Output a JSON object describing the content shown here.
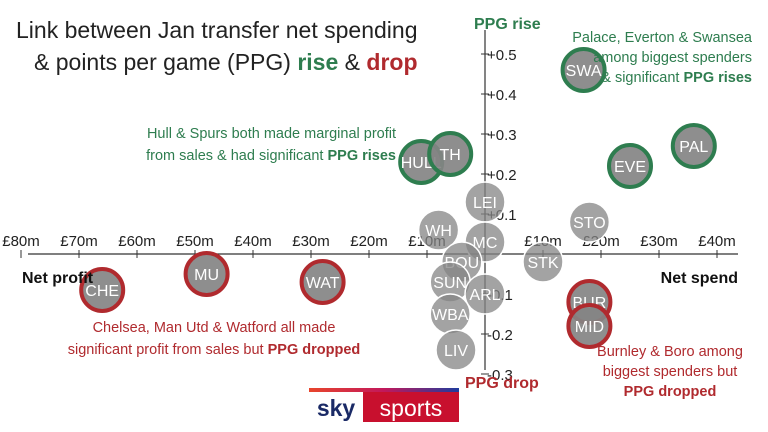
{
  "chart_data": {
    "type": "scatter",
    "title_lines": [
      "Link between Jan transfer net spending",
      "& points per game (PPG) ",
      "rise",
      " & ",
      "drop"
    ],
    "x_ticks": [
      "£80m",
      "£70m",
      "£60m",
      "£50m",
      "£40m",
      "£30m",
      "£20m",
      "£10m",
      "£10m",
      "£20m",
      "£30m",
      "£40m"
    ],
    "x_tick_values": [
      -80,
      -70,
      -60,
      -50,
      -40,
      -30,
      -20,
      -10,
      10,
      20,
      30,
      40
    ],
    "y_ticks": [
      "+0.5",
      "+0.4",
      "+0.3",
      "+0.2",
      "+0.1",
      "-0.1",
      "-0.2",
      "-0.3"
    ],
    "y_tick_values": [
      0.5,
      0.4,
      0.3,
      0.2,
      0.1,
      -0.1,
      -0.2,
      -0.3
    ],
    "xlim": [
      -80,
      40
    ],
    "ylim": [
      -0.3,
      0.5
    ],
    "x_label_left": "Net profit",
    "x_label_right": "Net spend",
    "y_label_top": "PPG rise",
    "y_label_bottom": "PPG drop",
    "colors": {
      "rise": "#2e7d4f",
      "drop": "#b02a2e",
      "neutral": "#8c8c8c",
      "axis": "#333333"
    },
    "points": [
      {
        "label": "SWA",
        "x": 17,
        "y": 0.46,
        "group": "rise"
      },
      {
        "label": "PAL",
        "x": 36,
        "y": 0.27,
        "group": "rise"
      },
      {
        "label": "EVE",
        "x": 25,
        "y": 0.22,
        "group": "rise"
      },
      {
        "label": "HULL",
        "x": -11,
        "y": 0.23,
        "group": "rise"
      },
      {
        "label": "TH",
        "x": -6,
        "y": 0.25,
        "group": "rise"
      },
      {
        "label": "LEI",
        "x": 0,
        "y": 0.13,
        "group": "neutral"
      },
      {
        "label": "STO",
        "x": 18,
        "y": 0.08,
        "group": "neutral"
      },
      {
        "label": "WH",
        "x": -8,
        "y": 0.06,
        "group": "neutral"
      },
      {
        "label": "MC",
        "x": 0,
        "y": 0.03,
        "group": "neutral"
      },
      {
        "label": "BOU",
        "x": -4,
        "y": -0.02,
        "group": "neutral"
      },
      {
        "label": "STK",
        "x": 10,
        "y": -0.02,
        "group": "neutral"
      },
      {
        "label": "SUN",
        "x": -6,
        "y": -0.07,
        "group": "neutral"
      },
      {
        "label": "ARL",
        "x": 0,
        "y": -0.1,
        "group": "neutral"
      },
      {
        "label": "WBA",
        "x": -6,
        "y": -0.15,
        "group": "neutral"
      },
      {
        "label": "LIV",
        "x": -5,
        "y": -0.24,
        "group": "neutral"
      },
      {
        "label": "CHE",
        "x": -66,
        "y": -0.09,
        "group": "drop"
      },
      {
        "label": "MU",
        "x": -48,
        "y": -0.05,
        "group": "drop"
      },
      {
        "label": "WAT",
        "x": -28,
        "y": -0.07,
        "group": "drop"
      },
      {
        "label": "BUR",
        "x": 18,
        "y": -0.12,
        "group": "drop"
      },
      {
        "label": "MID",
        "x": 18,
        "y": -0.18,
        "group": "drop"
      }
    ],
    "annotations": {
      "palace": {
        "lines": [
          "Palace, Everton & Swansea",
          "among biggest spenders"
        ],
        "last_pre": "& significant ",
        "last_bold": "PPG rises"
      },
      "hull": {
        "lines": [
          "Hull & Spurs both made marginal profit"
        ],
        "last_pre": "from sales & had significant ",
        "last_bold": "PPG rises"
      },
      "chelsea": {
        "lines": [
          "Chelsea, Man Utd & Watford all made"
        ],
        "last_pre": "significant profit from sales but ",
        "last_bold": "PPG dropped"
      },
      "burnley": {
        "lines": [
          "Burnley & Boro among",
          "biggest spenders but"
        ],
        "last_pre": "",
        "last_bold": "PPG dropped"
      }
    },
    "logo": {
      "left": "sky",
      "right": "sports"
    }
  }
}
